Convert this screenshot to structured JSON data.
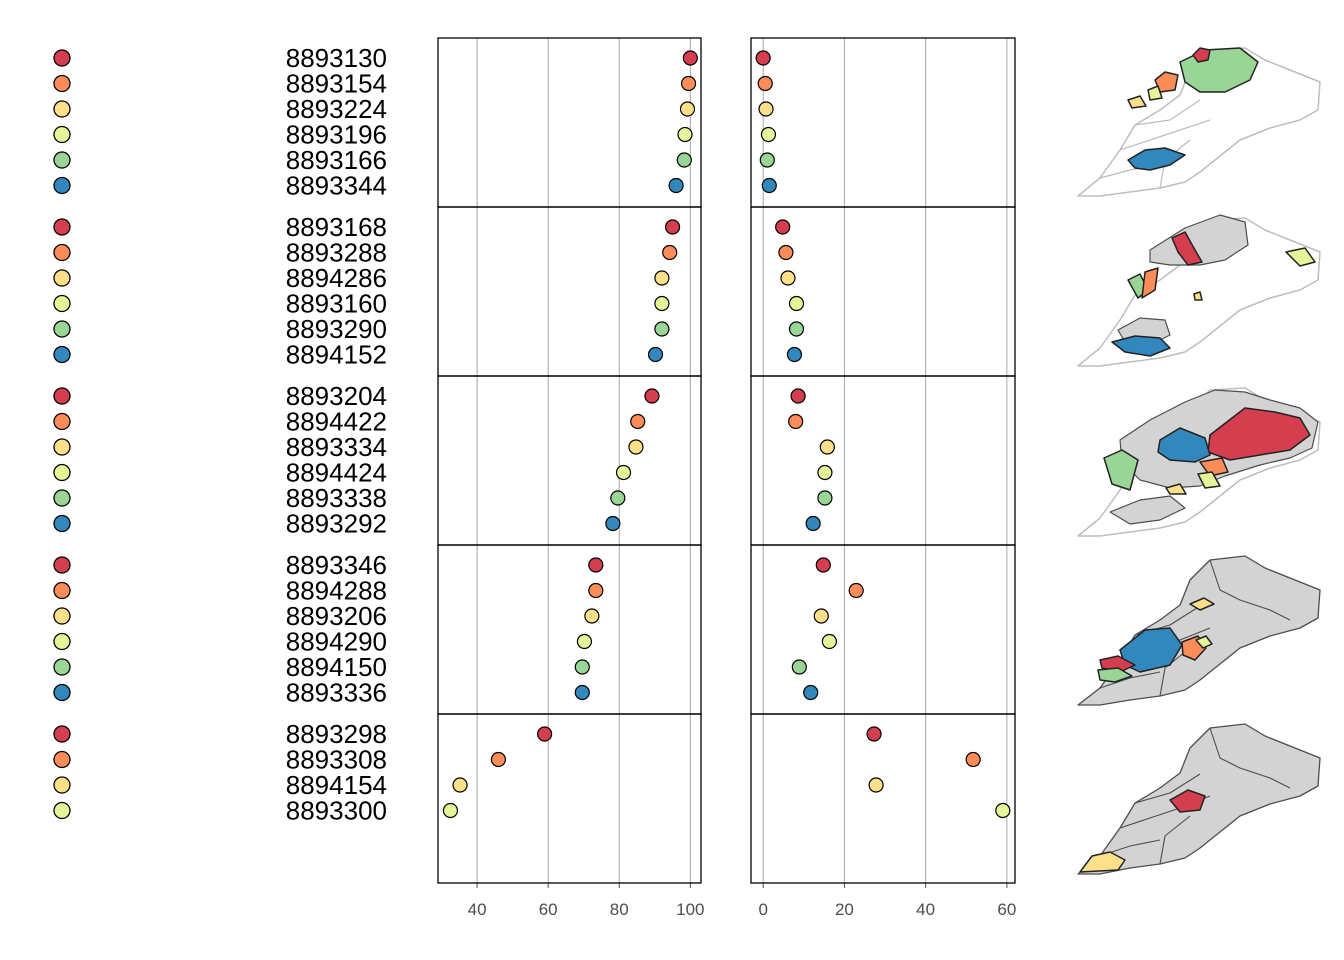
{
  "colors": {
    "rank": [
      "#d53e4f",
      "#fc8d59",
      "#fee08b",
      "#e6f598",
      "#99d594",
      "#3288bd"
    ],
    "map_fill": "#d3d3d3",
    "map_outline_light": "#bdbdbd",
    "map_outline_dark": "#4d4d4d"
  },
  "chart_data": [
    {
      "type": "scatter",
      "panel": "left",
      "xlim": [
        29,
        103
      ],
      "x_ticks": [
        "40",
        "60",
        "80",
        "100"
      ],
      "grid": true,
      "groups": [
        {
          "ids": [
            "8893130",
            "8893154",
            "8893224",
            "8893196",
            "8893166",
            "8893344"
          ],
          "values": [
            100,
            99.5,
            99.2,
            98.5,
            98.3,
            96
          ]
        },
        {
          "ids": [
            "8893168",
            "8893288",
            "8894286",
            "8893160",
            "8893290",
            "8894152"
          ],
          "values": [
            95,
            94.2,
            92,
            92,
            92,
            90.2
          ]
        },
        {
          "ids": [
            "8893204",
            "8894422",
            "8893334",
            "8894424",
            "8893338",
            "8893292"
          ],
          "values": [
            89.2,
            85.2,
            84.7,
            81.2,
            79.6,
            78.2
          ]
        },
        {
          "ids": [
            "8893346",
            "8894288",
            "8893206",
            "8894290",
            "8894150",
            "8893336"
          ],
          "values": [
            73.4,
            73.4,
            72.3,
            70.2,
            69.6,
            69.6
          ]
        },
        {
          "ids": [
            "8893298",
            "8893308",
            "8894154",
            "8893300"
          ],
          "values": [
            59,
            46,
            35.2,
            32.5
          ]
        }
      ]
    },
    {
      "type": "scatter",
      "panel": "right",
      "xlim": [
        -3,
        62
      ],
      "x_ticks": [
        "0",
        "20",
        "40",
        "60"
      ],
      "grid": true,
      "groups": [
        {
          "ids": [
            "8893130",
            "8893154",
            "8893224",
            "8893196",
            "8893166",
            "8893344"
          ],
          "values": [
            0,
            0.5,
            0.7,
            1.3,
            1.0,
            1.5
          ]
        },
        {
          "ids": [
            "8893168",
            "8893288",
            "8894286",
            "8893160",
            "8893290",
            "8894152"
          ],
          "values": [
            4.8,
            5.6,
            6.1,
            8.2,
            8.2,
            7.7
          ]
        },
        {
          "ids": [
            "8893204",
            "8894422",
            "8893334",
            "8894424",
            "8893338",
            "8893292"
          ],
          "values": [
            8.6,
            8.0,
            15.8,
            15.2,
            15.2,
            12.3
          ]
        },
        {
          "ids": [
            "8893346",
            "8894288",
            "8893206",
            "8894290",
            "8894150",
            "8893336"
          ],
          "values": [
            14.8,
            22.9,
            14.3,
            16.3,
            8.9,
            11.7
          ]
        },
        {
          "ids": [
            "8893298",
            "8893308",
            "8894154",
            "8893300"
          ],
          "values": [
            27.3,
            51.7,
            27.8,
            59.0
          ]
        }
      ]
    }
  ]
}
